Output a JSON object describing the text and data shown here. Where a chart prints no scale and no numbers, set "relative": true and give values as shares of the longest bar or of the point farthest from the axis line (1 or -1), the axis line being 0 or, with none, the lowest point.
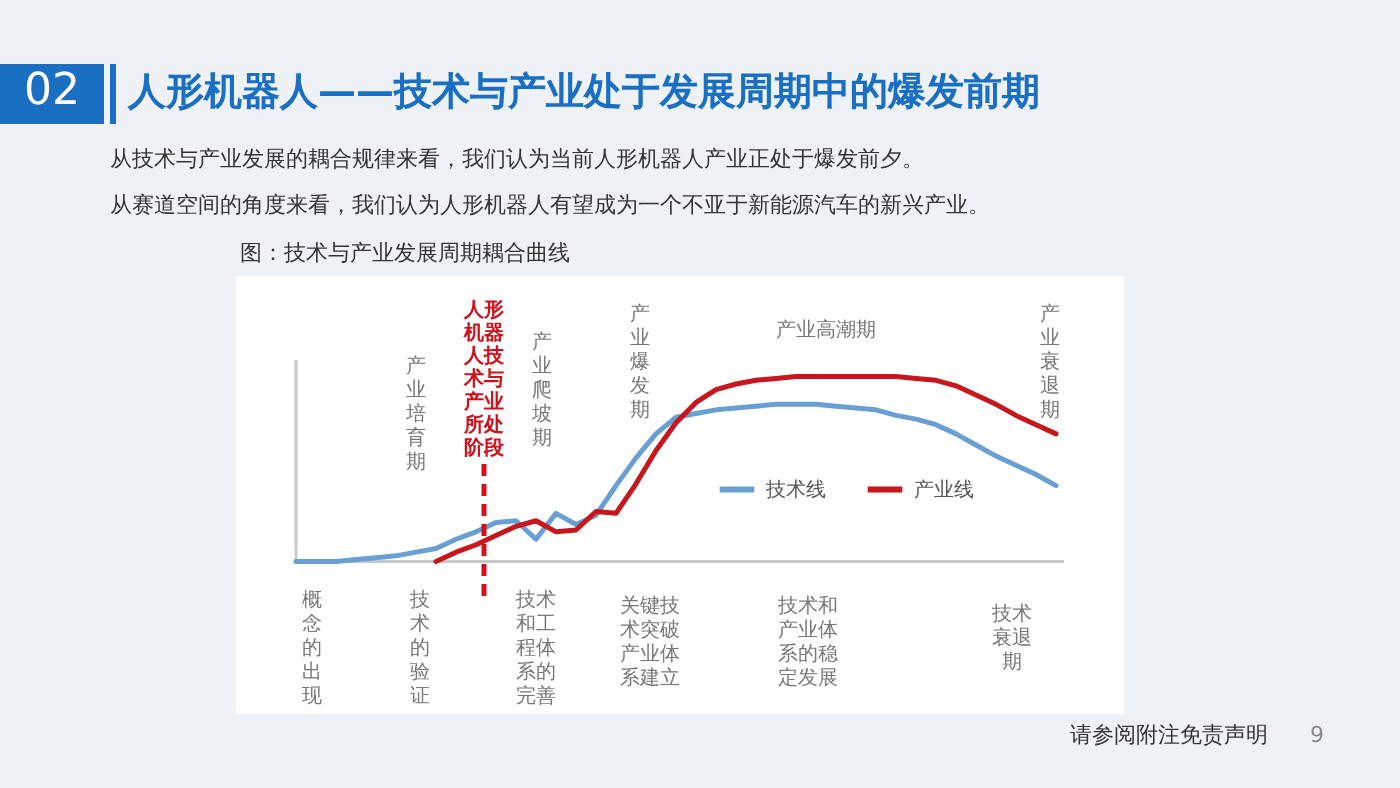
{
  "chart_data": {
    "type": "line",
    "relative": true,
    "title": "人形机器人——技术与产业处于发展周期中的爆发前期",
    "categories": [
      null,
      null,
      null,
      null,
      null,
      null,
      null,
      null,
      null,
      null,
      null,
      null,
      null,
      null,
      null,
      null,
      null,
      null,
      null,
      null,
      null,
      null,
      null,
      null,
      null,
      null,
      null,
      null,
      null,
      null,
      null,
      null,
      null,
      null,
      null,
      null,
      null,
      null,
      null
    ],
    "legend": "right",
    "line_style": "solid",
    "series": [
      {
        "name": "技术线",
        "color": "#6a9fd4",
        "values": [
          0,
          0,
          0,
          0.01,
          0.02,
          0.03,
          0.05,
          0.07,
          0.12,
          0.16,
          0.21,
          0.22,
          0.12,
          0.26,
          0.2,
          0.25,
          0.41,
          0.56,
          0.69,
          0.78,
          0.8,
          0.82,
          0.83,
          0.84,
          0.85,
          0.85,
          0.85,
          0.84,
          0.83,
          0.82,
          0.79,
          0.77,
          0.74,
          0.69,
          0.63,
          0.57,
          0.52,
          0.47,
          0.41
        ]
      },
      {
        "name": "产业线",
        "color": "#c8161d",
        "values": [
          null,
          null,
          null,
          null,
          null,
          null,
          null,
          0,
          0.05,
          0.09,
          0.14,
          0.19,
          0.22,
          0.16,
          0.17,
          0.27,
          0.26,
          0.42,
          0.6,
          0.75,
          0.86,
          0.93,
          0.96,
          0.98,
          0.99,
          1,
          1,
          1,
          1,
          1,
          1,
          0.99,
          0.98,
          0.95,
          0.9,
          0.85,
          0.79,
          0.74,
          0.69
        ]
      }
    ],
    "ref_lines": [
      {
        "axis": "x",
        "label": "人形机器人技术与产业所处阶段",
        "color": "#d0101a",
        "line_style": "dashed"
      }
    ],
    "annotations": [
      "02",
      "从技术与产业发展的耦合规律来看，我们认为当前人形机器人产业正处于爆发前夕。",
      "从赛道空间的角度来看，我们认为人形机器人有望成为一个不亚于新能源汽车的新兴产业。",
      "图：技术与产业发展周期耦合曲线",
      "产业培育期",
      "产业爬坡期",
      "产业爆发期",
      "产业高潮期",
      "产业衰退期",
      "概念的出现",
      "技术的验证",
      "技术和工程体系的完善",
      "关键技术突破产业体系建立",
      "技术和产业体系的稳定发展",
      "技术衰退期",
      "请参阅附注免责声明",
      "9"
    ]
  }
}
